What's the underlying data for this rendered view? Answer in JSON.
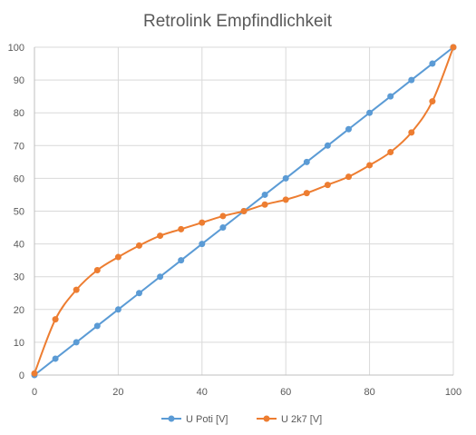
{
  "chart_data": {
    "type": "scatter",
    "title": "Retrolink Empfindlichkeit",
    "xlabel": "",
    "ylabel": "",
    "xlim": [
      0,
      100
    ],
    "ylim": [
      0,
      100
    ],
    "x_ticks": [
      0,
      20,
      40,
      60,
      80,
      100
    ],
    "y_ticks": [
      0,
      10,
      20,
      30,
      40,
      50,
      60,
      70,
      80,
      90,
      100
    ],
    "grid": true,
    "legend_position": "bottom",
    "series": [
      {
        "name": "U Poti [V]",
        "color": "#5b9bd5",
        "smooth": false,
        "x": [
          0,
          5,
          10,
          15,
          20,
          25,
          30,
          35,
          40,
          45,
          50,
          55,
          60,
          65,
          70,
          75,
          80,
          85,
          90,
          95,
          100
        ],
        "y": [
          0,
          5,
          10,
          15,
          20,
          25,
          30,
          35,
          40,
          45,
          50,
          55,
          60,
          65,
          70,
          75,
          80,
          85,
          90,
          95,
          100
        ]
      },
      {
        "name": "U 2k7 [V]",
        "color": "#ed7d31",
        "smooth": true,
        "x": [
          0,
          5,
          10,
          15,
          20,
          25,
          30,
          35,
          40,
          45,
          50,
          55,
          60,
          65,
          70,
          75,
          80,
          85,
          90,
          95,
          100
        ],
        "y": [
          0.5,
          17,
          26,
          32,
          36,
          39.5,
          42.5,
          44.5,
          46.5,
          48.5,
          50,
          52,
          53.5,
          55.5,
          58,
          60.5,
          64,
          68,
          74,
          83.5,
          100
        ]
      }
    ]
  }
}
